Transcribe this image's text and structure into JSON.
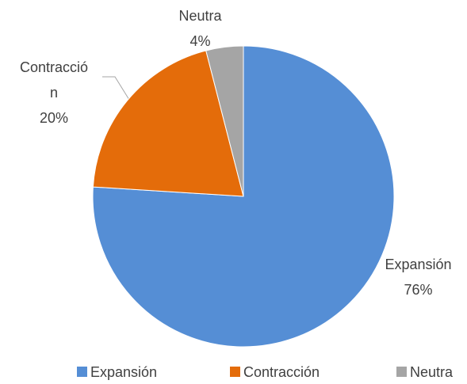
{
  "chart_data": {
    "type": "pie",
    "categories": [
      "Expansión",
      "Contracción",
      "Neutra"
    ],
    "values": [
      76,
      20,
      4
    ],
    "value_labels": [
      "76%",
      "20%",
      "4%"
    ],
    "colors": [
      "#558ed5",
      "#e46c0a",
      "#a5a5a5"
    ],
    "legend": "bottom"
  }
}
